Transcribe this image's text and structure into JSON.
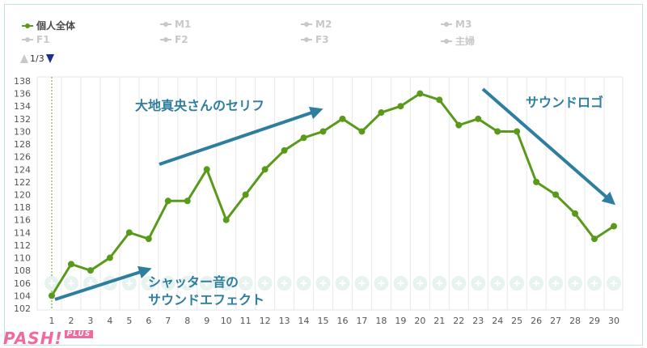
{
  "legend": {
    "items": [
      {
        "label": "個人全体",
        "active": true
      },
      {
        "label": "M1",
        "active": false
      },
      {
        "label": "M2",
        "active": false
      },
      {
        "label": "M3",
        "active": false
      },
      {
        "label": "F1",
        "active": false
      },
      {
        "label": "F2",
        "active": false
      },
      {
        "label": "F3",
        "active": false
      },
      {
        "label": "主婦",
        "active": false
      }
    ],
    "page": "1/3"
  },
  "annotations": {
    "a1": "大地真央さんのセリフ",
    "a2": "サウンドロゴ",
    "a3_line1": "シャッター音の",
    "a3_line2": "サウンドエフェクト"
  },
  "logo": {
    "text": "PASH!",
    "sub": "PLUS"
  },
  "colors": {
    "series": "#5a9a1a",
    "arrow": "#2e7ea0",
    "grid": "#e4e4e4"
  },
  "chart_data": {
    "type": "line",
    "x": [
      1,
      2,
      3,
      4,
      5,
      6,
      7,
      8,
      9,
      10,
      11,
      12,
      13,
      14,
      15,
      16,
      17,
      18,
      19,
      20,
      21,
      22,
      23,
      24,
      25,
      26,
      27,
      28,
      29,
      30
    ],
    "series": [
      {
        "name": "個人全体",
        "values": [
          104,
          109,
          108,
          110,
          114,
          113,
          119,
          119,
          124,
          116,
          120,
          124,
          127,
          129,
          130,
          132,
          130,
          133,
          134,
          136,
          135,
          131,
          132,
          130,
          130,
          122,
          120,
          117,
          113,
          115
        ]
      }
    ],
    "ylim": [
      102,
      138
    ],
    "yticks": [
      102,
      104,
      106,
      108,
      110,
      112,
      114,
      116,
      118,
      120,
      122,
      124,
      126,
      128,
      130,
      132,
      134,
      136,
      138
    ],
    "xlabel": "",
    "ylabel": "",
    "grid": true,
    "legend": "top-left"
  }
}
